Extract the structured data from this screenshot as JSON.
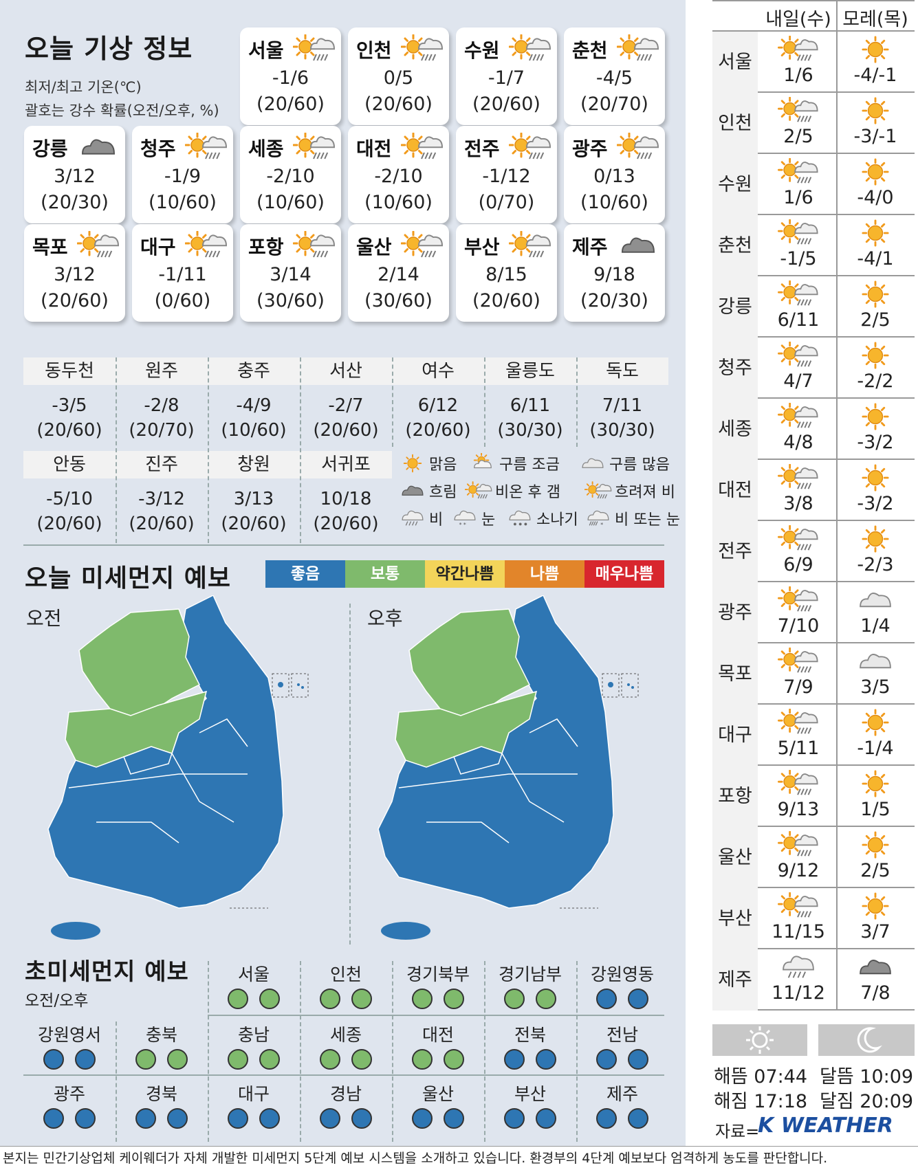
{
  "title": "오늘 기상 정보",
  "note1": "최저/최고 기온(℃)",
  "note2": "괄호는 강수 확률(오전/오후, %)",
  "cards": [
    {
      "name": "서울",
      "icon": "rain-then-clear-icon",
      "temp": "-1/6",
      "pop": "(20/60)"
    },
    {
      "name": "인천",
      "icon": "rain-then-clear-icon",
      "temp": "0/5",
      "pop": "(20/60)"
    },
    {
      "name": "수원",
      "icon": "rain-then-clear-icon",
      "temp": "-1/7",
      "pop": "(20/60)"
    },
    {
      "name": "춘천",
      "icon": "rain-then-clear-icon",
      "temp": "-4/5",
      "pop": "(20/70)"
    },
    {
      "name": "강릉",
      "icon": "cloudy-icon",
      "temp": "3/12",
      "pop": "(20/30)"
    },
    {
      "name": "청주",
      "icon": "rain-then-clear-icon",
      "temp": "-1/9",
      "pop": "(10/60)"
    },
    {
      "name": "세종",
      "icon": "rain-then-clear-icon",
      "temp": "-2/10",
      "pop": "(10/60)"
    },
    {
      "name": "대전",
      "icon": "rain-then-clear-icon",
      "temp": "-2/10",
      "pop": "(10/60)"
    },
    {
      "name": "전주",
      "icon": "rain-then-clear-icon",
      "temp": "-1/12",
      "pop": "(0/70)"
    },
    {
      "name": "광주",
      "icon": "rain-then-clear-icon",
      "temp": "0/13",
      "pop": "(10/60)"
    },
    {
      "name": "목포",
      "icon": "rain-then-clear-icon",
      "temp": "3/12",
      "pop": "(20/60)"
    },
    {
      "name": "대구",
      "icon": "rain-then-clear-icon",
      "temp": "-1/11",
      "pop": "(0/60)"
    },
    {
      "name": "포항",
      "icon": "rain-then-clear-icon",
      "temp": "3/14",
      "pop": "(30/60)"
    },
    {
      "name": "울산",
      "icon": "rain-then-clear-icon",
      "temp": "2/14",
      "pop": "(30/60)"
    },
    {
      "name": "부산",
      "icon": "rain-then-clear-icon",
      "temp": "8/15",
      "pop": "(20/60)"
    },
    {
      "name": "제주",
      "icon": "cloudy-icon",
      "temp": "9/18",
      "pop": "(20/30)"
    }
  ],
  "small": [
    {
      "name": "동두천",
      "temp": "-3/5",
      "pop": "(20/60)"
    },
    {
      "name": "원주",
      "temp": "-2/8",
      "pop": "(20/70)"
    },
    {
      "name": "충주",
      "temp": "-4/9",
      "pop": "(10/60)"
    },
    {
      "name": "서산",
      "temp": "-2/7",
      "pop": "(20/60)"
    },
    {
      "name": "여수",
      "temp": "6/12",
      "pop": "(20/60)"
    },
    {
      "name": "울릉도",
      "temp": "6/11",
      "pop": "(30/30)"
    },
    {
      "name": "독도",
      "temp": "7/11",
      "pop": "(30/30)"
    },
    {
      "name": "안동",
      "temp": "-5/10",
      "pop": "(20/60)"
    },
    {
      "name": "진주",
      "temp": "-3/12",
      "pop": "(20/60)"
    },
    {
      "name": "창원",
      "temp": "3/13",
      "pop": "(20/60)"
    },
    {
      "name": "서귀포",
      "temp": "10/18",
      "pop": "(20/60)"
    }
  ],
  "legend": [
    {
      "icon": "sunny-icon",
      "label": "맑음"
    },
    {
      "icon": "partly-cloudy-icon",
      "label": "구름 조금"
    },
    {
      "icon": "mostly-cloudy-icon",
      "label": "구름 많음"
    },
    {
      "icon": "overcast-icon",
      "label": "흐림"
    },
    {
      "icon": "rain-then-clear-icon",
      "label": "비온 후 갬"
    },
    {
      "icon": "clear-then-cloudy-icon",
      "label": "흐려져 비"
    },
    {
      "icon": "rain-icon",
      "label": "비"
    },
    {
      "icon": "snow-icon",
      "label": "눈"
    },
    {
      "icon": "shower-icon",
      "label": "소나기"
    },
    {
      "icon": "rain-or-snow-icon",
      "label": "비 또는 눈"
    }
  ],
  "dust_title": "오늘 미세먼지 예보",
  "scale": [
    {
      "label": "좋음",
      "color": "#2e76b3"
    },
    {
      "label": "보통",
      "color": "#7fba6c"
    },
    {
      "label": "약간나쁨",
      "color": "#f3d45a"
    },
    {
      "label": "나쁨",
      "color": "#e2852a"
    },
    {
      "label": "매우나쁨",
      "color": "#d8262e"
    }
  ],
  "am_label": "오전",
  "pm_label": "오후",
  "fine_title": "초미세먼지 예보",
  "fine_sub": "오전/오후",
  "fine": [
    {
      "name": "서울",
      "am": "보통",
      "pm": "보통"
    },
    {
      "name": "인천",
      "am": "보통",
      "pm": "보통"
    },
    {
      "name": "경기북부",
      "am": "보통",
      "pm": "보통"
    },
    {
      "name": "경기남부",
      "am": "보통",
      "pm": "보통"
    },
    {
      "name": "강원영동",
      "am": "좋음",
      "pm": "좋음"
    },
    {
      "name": "강원영서",
      "am": "좋음",
      "pm": "좋음"
    },
    {
      "name": "충북",
      "am": "보통",
      "pm": "보통"
    },
    {
      "name": "충남",
      "am": "보통",
      "pm": "보통"
    },
    {
      "name": "세종",
      "am": "보통",
      "pm": "보통"
    },
    {
      "name": "대전",
      "am": "보통",
      "pm": "보통"
    },
    {
      "name": "전북",
      "am": "좋음",
      "pm": "좋음"
    },
    {
      "name": "전남",
      "am": "좋음",
      "pm": "좋음"
    },
    {
      "name": "광주",
      "am": "좋음",
      "pm": "좋음"
    },
    {
      "name": "경북",
      "am": "좋음",
      "pm": "좋음"
    },
    {
      "name": "대구",
      "am": "좋음",
      "pm": "좋음"
    },
    {
      "name": "경남",
      "am": "좋음",
      "pm": "좋음"
    },
    {
      "name": "울산",
      "am": "좋음",
      "pm": "좋음"
    },
    {
      "name": "부산",
      "am": "좋음",
      "pm": "좋음"
    },
    {
      "name": "제주",
      "am": "좋음",
      "pm": "좋음"
    }
  ],
  "fc_head": [
    "내일(수)",
    "모레(목)"
  ],
  "forecast": [
    {
      "name": "서울",
      "d1": "1/6",
      "i1": "rain-then-clear-icon",
      "d2": "-4/-1",
      "i2": "sunny-icon"
    },
    {
      "name": "인천",
      "d1": "2/5",
      "i1": "rain-then-clear-icon",
      "d2": "-3/-1",
      "i2": "sunny-icon"
    },
    {
      "name": "수원",
      "d1": "1/6",
      "i1": "rain-then-clear-icon",
      "d2": "-4/0",
      "i2": "sunny-icon"
    },
    {
      "name": "춘천",
      "d1": "-1/5",
      "i1": "rain-then-clear-icon",
      "d2": "-4/1",
      "i2": "sunny-icon"
    },
    {
      "name": "강릉",
      "d1": "6/11",
      "i1": "rain-then-clear-icon",
      "d2": "2/5",
      "i2": "sunny-icon"
    },
    {
      "name": "청주",
      "d1": "4/7",
      "i1": "rain-then-clear-icon",
      "d2": "-2/2",
      "i2": "sunny-icon"
    },
    {
      "name": "세종",
      "d1": "4/8",
      "i1": "rain-then-clear-icon",
      "d2": "-3/2",
      "i2": "sunny-icon"
    },
    {
      "name": "대전",
      "d1": "3/8",
      "i1": "rain-then-clear-icon",
      "d2": "-3/2",
      "i2": "sunny-icon"
    },
    {
      "name": "전주",
      "d1": "6/9",
      "i1": "rain-then-clear-icon",
      "d2": "-2/3",
      "i2": "sunny-icon"
    },
    {
      "name": "광주",
      "d1": "7/10",
      "i1": "rain-then-clear-icon",
      "d2": "1/4",
      "i2": "mostly-cloudy-icon"
    },
    {
      "name": "목포",
      "d1": "7/9",
      "i1": "rain-then-clear-icon",
      "d2": "3/5",
      "i2": "mostly-cloudy-icon"
    },
    {
      "name": "대구",
      "d1": "5/11",
      "i1": "rain-then-clear-icon",
      "d2": "-1/4",
      "i2": "sunny-icon"
    },
    {
      "name": "포항",
      "d1": "9/13",
      "i1": "rain-then-clear-icon",
      "d2": "1/5",
      "i2": "sunny-icon"
    },
    {
      "name": "울산",
      "d1": "9/12",
      "i1": "rain-then-clear-icon",
      "d2": "2/5",
      "i2": "sunny-icon"
    },
    {
      "name": "부산",
      "d1": "11/15",
      "i1": "rain-then-clear-icon",
      "d2": "3/7",
      "i2": "sunny-icon"
    },
    {
      "name": "제주",
      "d1": "11/12",
      "i1": "rain-icon",
      "d2": "7/8",
      "i2": "overcast-icon"
    }
  ],
  "sun": {
    "rise": "해뜸 07:44",
    "set": "해짐 17:18",
    "moonrise": "달뜸 10:09",
    "moonset": "달짐 20:09"
  },
  "source_label": "자료=",
  "source_brand": "K WEATHER",
  "footer": "본지는 민간기상업체 케이웨더가 자체 개발한 미세먼지 5단계 예보 시스템을 소개하고 있습니다. 환경부의 4단계 예보보다 엄격하게 농도를 판단합니다."
}
